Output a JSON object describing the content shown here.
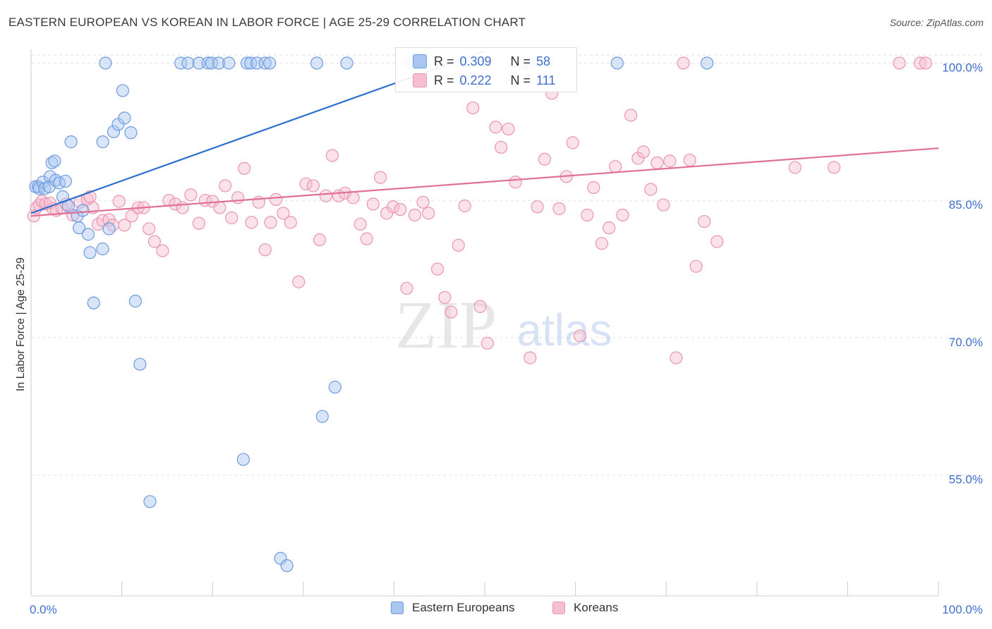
{
  "header": {
    "title": "EASTERN EUROPEAN VS KOREAN IN LABOR FORCE | AGE 25-29 CORRELATION CHART",
    "source": "Source: ZipAtlas.com"
  },
  "legend_box": {
    "rows": [
      {
        "r_label": "R =",
        "r_value": "0.309",
        "n_label": "N =",
        "n_value": "58"
      },
      {
        "r_label": "R =",
        "r_value": "0.222",
        "n_label": "N =",
        "n_value": "111"
      }
    ]
  },
  "legend_bottom": {
    "items": [
      "Eastern Europeans",
      "Koreans"
    ]
  },
  "watermark": {
    "zip": "ZIP",
    "atlas": "atlas"
  },
  "colors": {
    "eastern_fill": "#a9c6f1",
    "eastern_stroke": "#6d9be0",
    "eastern_line": "#2f6fcf",
    "korean_fill": "#f6bfd0",
    "korean_stroke": "#eb94b2",
    "korean_line": "#e07097",
    "axis_label": "#3f6fce",
    "grid": "#e2e2e2"
  },
  "chart_data": {
    "type": "scatter",
    "title": "EASTERN EUROPEAN VS KOREAN IN LABOR FORCE | AGE 25-29 CORRELATION CHART",
    "xlabel": "",
    "ylabel": "In Labor Force | Age 25-29",
    "xlim": [
      0,
      100
    ],
    "ylim": [
      41.8,
      101.5
    ],
    "x_tick_labels": [
      "0.0%",
      "100.0%"
    ],
    "y_ticks": [
      55,
      70,
      85,
      100
    ],
    "y_tick_labels": [
      "55.0%",
      "70.0%",
      "85.0%",
      "100.0%"
    ],
    "grid": true,
    "legend_position": "top-center",
    "series": [
      {
        "name": "Eastern Europeans",
        "R": 0.309,
        "N": 58,
        "trend": {
          "x": [
            0,
            50
          ],
          "y": [
            83.6,
            101.3
          ]
        },
        "points": [
          [
            0.5,
            86.5
          ],
          [
            0.8,
            86.5
          ],
          [
            0.9,
            86.3
          ],
          [
            1.3,
            87.0
          ],
          [
            1.5,
            86.3
          ],
          [
            2.0,
            86.5
          ],
          [
            2.1,
            87.6
          ],
          [
            2.3,
            89.1
          ],
          [
            2.6,
            89.3
          ],
          [
            2.7,
            87.2
          ],
          [
            3.1,
            86.9
          ],
          [
            3.5,
            85.4
          ],
          [
            3.8,
            87.1
          ],
          [
            4.1,
            84.4
          ],
          [
            4.4,
            91.4
          ],
          [
            5.1,
            83.3
          ],
          [
            5.3,
            82.0
          ],
          [
            5.7,
            83.9
          ],
          [
            6.3,
            81.3
          ],
          [
            6.5,
            79.3
          ],
          [
            6.9,
            73.8
          ],
          [
            7.9,
            79.7
          ],
          [
            7.9,
            91.4
          ],
          [
            8.2,
            100.0
          ],
          [
            8.6,
            81.9
          ],
          [
            9.1,
            92.5
          ],
          [
            9.6,
            93.3
          ],
          [
            10.1,
            97.0
          ],
          [
            10.3,
            94.0
          ],
          [
            11.0,
            92.4
          ],
          [
            11.5,
            74.0
          ],
          [
            12.0,
            67.1
          ],
          [
            13.1,
            52.1
          ],
          [
            16.5,
            100.0
          ],
          [
            17.3,
            100.0
          ],
          [
            18.5,
            100.0
          ],
          [
            19.5,
            100.0
          ],
          [
            19.9,
            100.0
          ],
          [
            20.7,
            100.0
          ],
          [
            21.8,
            100.0
          ],
          [
            23.4,
            56.7
          ],
          [
            23.8,
            100.0
          ],
          [
            24.2,
            100.0
          ],
          [
            24.9,
            100.0
          ],
          [
            25.8,
            100.0
          ],
          [
            26.3,
            100.0
          ],
          [
            27.5,
            45.9
          ],
          [
            28.2,
            45.1
          ],
          [
            31.5,
            100.0
          ],
          [
            32.1,
            61.4
          ],
          [
            33.5,
            64.6
          ],
          [
            34.8,
            100.0
          ],
          [
            41.9,
            100.0
          ],
          [
            42.2,
            100.0
          ],
          [
            43.3,
            100.0
          ],
          [
            54.9,
            100.0
          ],
          [
            64.6,
            100.0
          ],
          [
            74.5,
            100.0
          ]
        ]
      },
      {
        "name": "Koreans",
        "R": 0.222,
        "N": 111,
        "trend": {
          "x": [
            0,
            100
          ],
          "y": [
            83.3,
            90.7
          ]
        },
        "points": [
          [
            0.3,
            83.3
          ],
          [
            0.6,
            84.2
          ],
          [
            0.9,
            84.5
          ],
          [
            1.2,
            84.9
          ],
          [
            1.6,
            84.6
          ],
          [
            2.1,
            84.7
          ],
          [
            2.4,
            84.1
          ],
          [
            2.8,
            83.9
          ],
          [
            3.4,
            84.2
          ],
          [
            3.9,
            84.6
          ],
          [
            4.6,
            83.4
          ],
          [
            5.4,
            84.8
          ],
          [
            6.2,
            85.1
          ],
          [
            6.5,
            85.4
          ],
          [
            6.8,
            84.2
          ],
          [
            7.4,
            82.4
          ],
          [
            7.9,
            82.8
          ],
          [
            8.6,
            82.9
          ],
          [
            9.0,
            82.3
          ],
          [
            9.7,
            84.9
          ],
          [
            10.3,
            82.3
          ],
          [
            11.1,
            83.3
          ],
          [
            11.8,
            84.2
          ],
          [
            12.4,
            84.2
          ],
          [
            13.0,
            81.9
          ],
          [
            13.6,
            80.5
          ],
          [
            14.5,
            79.5
          ],
          [
            15.2,
            85.0
          ],
          [
            15.9,
            84.6
          ],
          [
            16.7,
            84.2
          ],
          [
            17.6,
            85.6
          ],
          [
            18.5,
            82.5
          ],
          [
            19.2,
            85.0
          ],
          [
            20.0,
            84.9
          ],
          [
            20.8,
            84.2
          ],
          [
            21.4,
            86.6
          ],
          [
            22.1,
            83.1
          ],
          [
            22.8,
            85.3
          ],
          [
            23.5,
            88.5
          ],
          [
            24.3,
            82.6
          ],
          [
            25.1,
            84.8
          ],
          [
            25.8,
            79.6
          ],
          [
            26.4,
            82.6
          ],
          [
            27.0,
            85.1
          ],
          [
            27.8,
            83.6
          ],
          [
            28.6,
            82.6
          ],
          [
            29.5,
            76.1
          ],
          [
            30.3,
            86.8
          ],
          [
            31.1,
            86.6
          ],
          [
            31.8,
            80.7
          ],
          [
            32.5,
            85.5
          ],
          [
            33.2,
            89.9
          ],
          [
            33.9,
            85.5
          ],
          [
            34.6,
            85.8
          ],
          [
            35.5,
            85.3
          ],
          [
            36.3,
            82.4
          ],
          [
            37.0,
            80.8
          ],
          [
            37.7,
            84.6
          ],
          [
            38.5,
            87.5
          ],
          [
            39.2,
            83.6
          ],
          [
            39.9,
            84.3
          ],
          [
            40.7,
            84.0
          ],
          [
            41.4,
            75.4
          ],
          [
            42.3,
            83.4
          ],
          [
            43.2,
            84.8
          ],
          [
            43.8,
            83.6
          ],
          [
            44.8,
            77.5
          ],
          [
            45.6,
            74.4
          ],
          [
            46.3,
            72.8
          ],
          [
            47.1,
            80.1
          ],
          [
            47.8,
            84.4
          ],
          [
            48.7,
            95.1
          ],
          [
            49.5,
            73.4
          ],
          [
            50.3,
            69.4
          ],
          [
            51.2,
            93.0
          ],
          [
            51.8,
            90.8
          ],
          [
            52.6,
            92.8
          ],
          [
            53.4,
            87.0
          ],
          [
            54.1,
            100.0
          ],
          [
            55.0,
            67.8
          ],
          [
            55.8,
            84.3
          ],
          [
            56.6,
            89.5
          ],
          [
            57.4,
            96.7
          ],
          [
            58.2,
            84.1
          ],
          [
            59.0,
            87.6
          ],
          [
            59.7,
            91.3
          ],
          [
            60.5,
            70.2
          ],
          [
            61.3,
            83.4
          ],
          [
            62.0,
            86.4
          ],
          [
            62.9,
            80.3
          ],
          [
            63.7,
            82.0
          ],
          [
            64.4,
            88.7
          ],
          [
            65.2,
            83.4
          ],
          [
            66.1,
            94.3
          ],
          [
            66.9,
            89.6
          ],
          [
            67.5,
            90.3
          ],
          [
            68.3,
            86.2
          ],
          [
            69.0,
            89.1
          ],
          [
            69.7,
            84.5
          ],
          [
            70.4,
            89.3
          ],
          [
            71.1,
            67.8
          ],
          [
            71.9,
            100.0
          ],
          [
            72.6,
            89.4
          ],
          [
            73.3,
            77.8
          ],
          [
            74.2,
            82.7
          ],
          [
            75.6,
            80.5
          ],
          [
            84.2,
            88.6
          ],
          [
            88.5,
            88.6
          ],
          [
            95.7,
            100.0
          ],
          [
            98.0,
            100.0
          ],
          [
            98.6,
            100.0
          ]
        ]
      }
    ]
  }
}
